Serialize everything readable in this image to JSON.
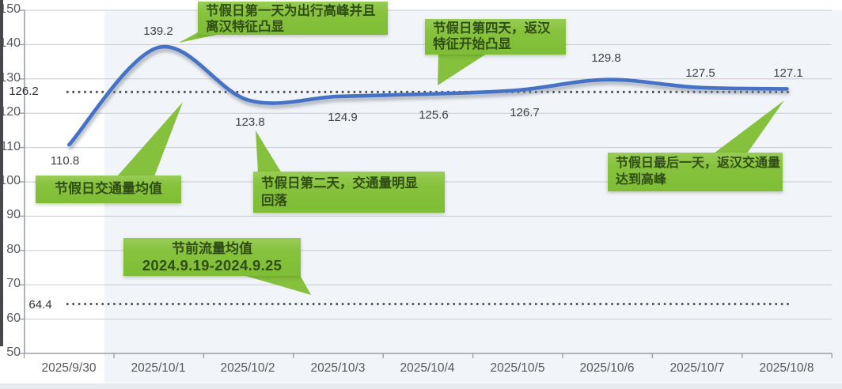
{
  "chart_data": {
    "type": "line",
    "categories": [
      "2025/9/30",
      "2025/10/1",
      "2025/10/2",
      "2025/10/3",
      "2025/10/4",
      "2025/10/5",
      "2025/10/6",
      "2025/10/7",
      "2025/10/8"
    ],
    "series": [
      {
        "values": [
          110.8,
          139.2,
          123.8,
          124.9,
          125.6,
          126.7,
          129.8,
          127.5,
          127.1
        ]
      }
    ],
    "point_labels": [
      "110.8",
      "139.2",
      "123.8",
      "124.9",
      "125.6",
      "126.7",
      "129.8",
      "127.5",
      "127.1"
    ],
    "yticks": [
      "150",
      "140",
      "130",
      "120",
      "110",
      "100",
      "90",
      "80",
      "70",
      "60",
      "50"
    ],
    "ylim": [
      50,
      150
    ],
    "grid": true,
    "legend": false,
    "reference_lines": [
      {
        "label": "126.2",
        "value": 126.2
      },
      {
        "label": "64.4",
        "value": 64.4
      }
    ]
  },
  "annotations": [
    {
      "id": "holiday-day1",
      "lines": [
        "节假日第一天为出行高峰并且",
        "离汉特征凸显"
      ]
    },
    {
      "id": "holiday-day4",
      "lines": [
        "节假日第四天，返汉",
        "特征开始凸显"
      ]
    },
    {
      "id": "holiday-average",
      "lines": [
        "节假日交通量均值"
      ]
    },
    {
      "id": "holiday-day2",
      "lines": [
        "节假日第二天，交通量明显",
        "回落"
      ]
    },
    {
      "id": "pre-holiday-average",
      "lines": [
        "节前流量均值",
        "2024.9.19-2024.9.25"
      ]
    },
    {
      "id": "holiday-last-day",
      "lines": [
        "节假日最后一天，返汉交通量",
        "达到高峰"
      ]
    }
  ],
  "colors": {
    "line_blue": "#4472c4",
    "callout_green": "#8cc63f",
    "dotted_gray": "#4d4d4d",
    "plot_bg": "#f1f4f8",
    "gridline": "#c6cbd2"
  }
}
